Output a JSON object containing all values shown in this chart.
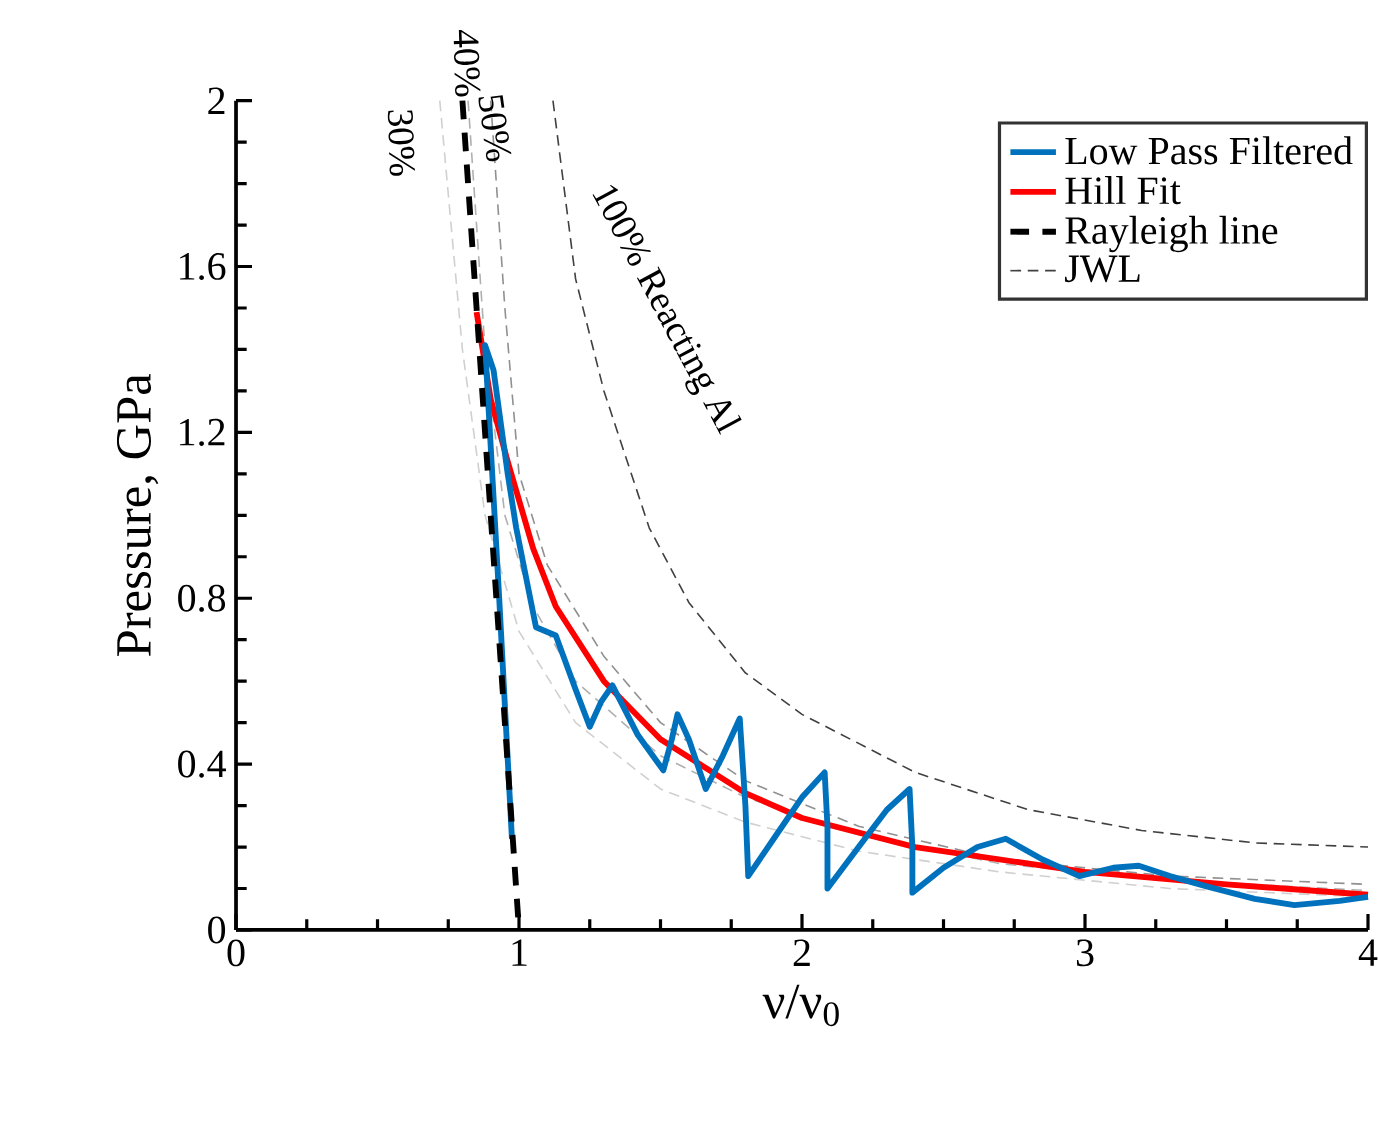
{
  "chart_data": {
    "type": "line",
    "xlabel": "ν/ν$_{0}$",
    "ylabel": "Pressure, GPa",
    "xlim": [
      0,
      4
    ],
    "xticks": [
      0,
      1,
      2,
      3,
      4
    ],
    "ylim": [
      0,
      2
    ],
    "yticks": [
      0,
      0.4,
      0.8,
      1.2,
      1.6,
      2
    ],
    "legend": "top right",
    "grid": false,
    "marker": "none",
    "annotations": [
      "JWL"
    ],
    "series": [
      {
        "name": "Low Pass Filtered",
        "color": "#0072bd",
        "line_style": "solid",
        "x": [
          0.975,
          0.93,
          0.88,
          0.91,
          0.96,
          0.99,
          1.06,
          1.13,
          1.2,
          1.25,
          1.29,
          1.33,
          1.42,
          1.51,
          1.54,
          1.56,
          1.6,
          1.66,
          1.72,
          1.78,
          1.8,
          1.81,
          1.9,
          2.0,
          2.08,
          2.09,
          2.09,
          2.2,
          2.3,
          2.38,
          2.39,
          2.39,
          2.5,
          2.62,
          2.72,
          2.85,
          2.98,
          3.1,
          3.19,
          3.3,
          3.43,
          3.6,
          3.74,
          3.9,
          4.0
        ],
        "values": [
          0.22,
          0.8,
          1.41,
          1.35,
          1.1,
          0.97,
          0.73,
          0.71,
          0.58,
          0.49,
          0.55,
          0.59,
          0.47,
          0.385,
          0.46,
          0.52,
          0.46,
          0.34,
          0.42,
          0.51,
          0.3,
          0.13,
          0.22,
          0.32,
          0.38,
          0.25,
          0.1,
          0.2,
          0.29,
          0.34,
          0.2,
          0.09,
          0.15,
          0.2,
          0.22,
          0.17,
          0.13,
          0.15,
          0.155,
          0.13,
          0.105,
          0.075,
          0.06,
          0.07,
          0.08
        ]
      },
      {
        "name": "Hill Fit",
        "color": "#ff0000",
        "line_style": "solid",
        "x": [
          0.85,
          0.9,
          0.96,
          1.05,
          1.13,
          1.3,
          1.5,
          1.8,
          2.0,
          2.4,
          3.0,
          3.5,
          4.0
        ],
        "values": [
          1.49,
          1.28,
          1.13,
          0.92,
          0.78,
          0.6,
          0.46,
          0.33,
          0.27,
          0.2,
          0.14,
          0.11,
          0.085
        ]
      },
      {
        "name": "Rayleigh line",
        "color": "#000000",
        "line_style": "dashed",
        "x": [
          0.8,
          1.0
        ],
        "values": [
          2.0,
          0.0
        ]
      },
      {
        "name": "30%",
        "color": "#d0d0d0",
        "line_style": "dashed",
        "x": [
          0.72,
          0.8,
          0.88,
          1.0,
          1.2,
          1.5,
          1.8,
          2.2,
          2.7,
          3.3,
          4.0
        ],
        "values": [
          2.0,
          1.4,
          1.0,
          0.72,
          0.5,
          0.34,
          0.26,
          0.19,
          0.14,
          0.1,
          0.08
        ]
      },
      {
        "name": "40%",
        "color": "#b0b0b0",
        "line_style": "dashed",
        "x": [
          0.82,
          0.88,
          0.95,
          1.05,
          1.2,
          1.5,
          1.8,
          2.2,
          2.7,
          3.3,
          4.0
        ],
        "values": [
          2.0,
          1.4,
          1.0,
          0.78,
          0.6,
          0.42,
          0.32,
          0.23,
          0.16,
          0.12,
          0.095
        ]
      },
      {
        "name": "50%",
        "color": "#909090",
        "line_style": "dashed",
        "x": [
          0.9,
          0.95,
          1.0,
          1.1,
          1.3,
          1.5,
          1.8,
          2.2,
          2.7,
          3.3,
          4.0
        ],
        "values": [
          2.0,
          1.5,
          1.1,
          0.88,
          0.66,
          0.5,
          0.36,
          0.25,
          0.17,
          0.13,
          0.11
        ]
      },
      {
        "name": "100% Reacting Al",
        "color": "#404040",
        "line_style": "dashed",
        "x": [
          1.12,
          1.2,
          1.3,
          1.46,
          1.6,
          1.8,
          2.0,
          2.4,
          2.8,
          3.2,
          3.6,
          4.0
        ],
        "values": [
          2.0,
          1.57,
          1.3,
          0.97,
          0.79,
          0.62,
          0.52,
          0.38,
          0.29,
          0.24,
          0.21,
          0.2
        ]
      }
    ]
  }
}
